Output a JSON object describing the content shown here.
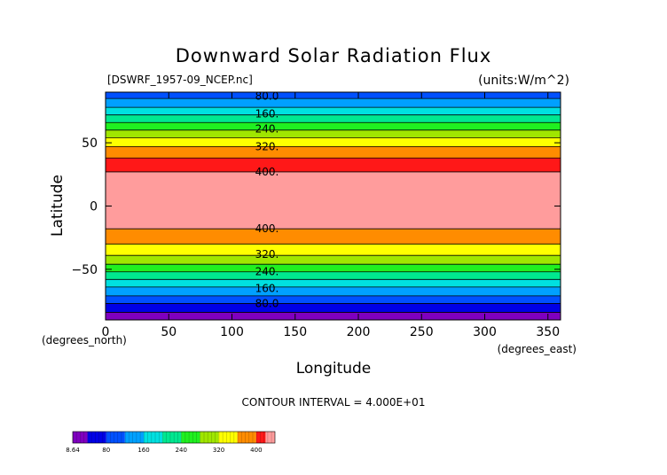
{
  "chart_data": {
    "type": "heatmap",
    "title": "Downward Solar Radiation Flux",
    "subtitle_left": "[DSWRF_1957-09_NCEP.nc]",
    "subtitle_right": "(units:W/m^2)",
    "xlabel": "Longitude",
    "ylabel": "Latitude",
    "x_unit_label": "(degrees_east)",
    "y_unit_label": "(degrees_north)",
    "xlim": [
      0,
      360
    ],
    "ylim": [
      -90,
      90
    ],
    "x_ticks": [
      0,
      50,
      100,
      150,
      200,
      250,
      300,
      350
    ],
    "y_ticks": [
      -50,
      0,
      50
    ],
    "bands": [
      {
        "from": -90,
        "to": -84,
        "color": "#7f00bf"
      },
      {
        "from": -84,
        "to": -77,
        "color": "#0000e6"
      },
      {
        "from": -77,
        "to": -71,
        "color": "#0050ff"
      },
      {
        "from": -71,
        "to": -64,
        "color": "#00a0ff"
      },
      {
        "from": -64,
        "to": -58,
        "color": "#00e0e0"
      },
      {
        "from": -58,
        "to": -52,
        "color": "#00e890"
      },
      {
        "from": -52,
        "to": -46,
        "color": "#20f020"
      },
      {
        "from": -46,
        "to": -39,
        "color": "#a0e600"
      },
      {
        "from": -39,
        "to": -30,
        "color": "#ffff00"
      },
      {
        "from": -30,
        "to": -18,
        "color": "#ff8c00"
      },
      {
        "from": -18,
        "to": 27,
        "color": "#ff1818"
      },
      {
        "from": 27,
        "to": 38,
        "color": "#ff1818"
      },
      {
        "from": 38,
        "to": 47,
        "color": "#ff8c00"
      },
      {
        "from": 47,
        "to": 54,
        "color": "#ffff00"
      },
      {
        "from": 54,
        "to": 60,
        "color": "#a0e600"
      },
      {
        "from": 60,
        "to": 66,
        "color": "#20f020"
      },
      {
        "from": 66,
        "to": 72,
        "color": "#00e890"
      },
      {
        "from": 72,
        "to": 78,
        "color": "#00e0e0"
      },
      {
        "from": 78,
        "to": 85,
        "color": "#00a0ff"
      },
      {
        "from": 85,
        "to": 90,
        "color": "#0050ff"
      }
    ],
    "center_band": {
      "from": -18,
      "to": 27,
      "color": "#ff9c9c"
    },
    "contour_labels": [
      {
        "lat": 87,
        "text": "80.0"
      },
      {
        "lat": 73,
        "text": "160."
      },
      {
        "lat": 61,
        "text": "240."
      },
      {
        "lat": 47,
        "text": "320."
      },
      {
        "lat": 27,
        "text": "400."
      },
      {
        "lat": -18,
        "text": "400."
      },
      {
        "lat": -38,
        "text": "320."
      },
      {
        "lat": -52,
        "text": "240."
      },
      {
        "lat": -65,
        "text": "160."
      },
      {
        "lat": -77,
        "text": "80.0"
      }
    ],
    "contour_lines": [
      -84,
      -77,
      -71,
      -64,
      -58,
      -52,
      -46,
      -39,
      -30,
      -18,
      27,
      38,
      47,
      54,
      60,
      66,
      72,
      78,
      85
    ],
    "footer": "CONTOUR INTERVAL = 4.000E+01",
    "colorbar": {
      "min": 8.64,
      "max": 440,
      "tick_values": [
        8.64,
        80,
        160,
        240,
        320,
        400
      ],
      "tick_labels": [
        "8.64",
        "80",
        "160",
        "240",
        "320",
        "400"
      ],
      "segments": [
        {
          "from": 8.64,
          "to": 40,
          "color": "#7f00bf"
        },
        {
          "from": 40,
          "to": 80,
          "color": "#0000e6"
        },
        {
          "from": 80,
          "to": 120,
          "color": "#0050ff"
        },
        {
          "from": 120,
          "to": 160,
          "color": "#00a0ff"
        },
        {
          "from": 160,
          "to": 200,
          "color": "#00e0e0"
        },
        {
          "from": 200,
          "to": 240,
          "color": "#00e890"
        },
        {
          "from": 240,
          "to": 280,
          "color": "#20f020"
        },
        {
          "from": 280,
          "to": 320,
          "color": "#a0e600"
        },
        {
          "from": 320,
          "to": 360,
          "color": "#ffff00"
        },
        {
          "from": 360,
          "to": 400,
          "color": "#ff8c00"
        },
        {
          "from": 400,
          "to": 420,
          "color": "#ff1818"
        },
        {
          "from": 420,
          "to": 440,
          "color": "#ff9c9c"
        }
      ]
    }
  }
}
